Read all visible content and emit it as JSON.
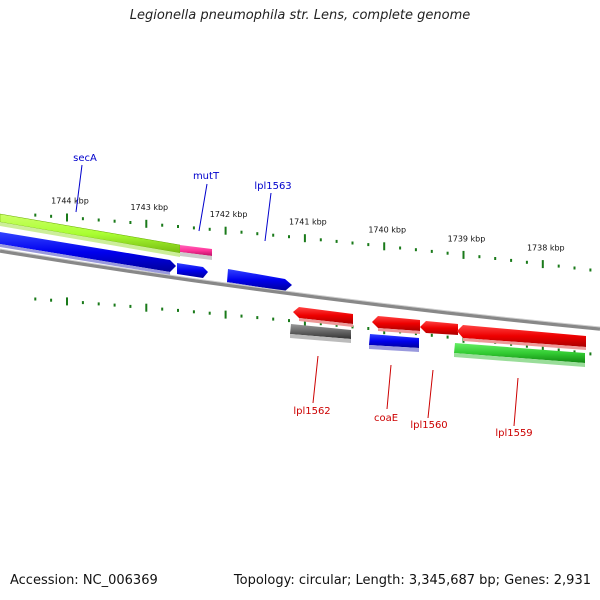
{
  "title": "Legionella pneumophila str. Lens, complete genome",
  "accession": "Accession: NC_006369",
  "topology": "Topology: circular; Length: 3,345,687 bp; Genes: 2,931",
  "kbp_labels": [
    {
      "text": "1744 kbp",
      "kbp": 1744
    },
    {
      "text": "1743 kbp",
      "kbp": 1743
    },
    {
      "text": "1742 kbp",
      "kbp": 1742
    },
    {
      "text": "1741 kbp",
      "kbp": 1741
    },
    {
      "text": "1740 kbp",
      "kbp": 1740
    },
    {
      "text": "1739 kbp",
      "kbp": 1739
    },
    {
      "text": "1738 kbp",
      "kbp": 1738
    }
  ],
  "genes_forward": [
    {
      "name": "secA",
      "color": "#0000cc"
    },
    {
      "name": "mutT",
      "color": "#0000cc"
    },
    {
      "name": "lpl1563",
      "color": "#0000cc"
    }
  ],
  "genes_reverse": [
    {
      "name": "lpl1562",
      "color": "#cc0000"
    },
    {
      "name": "coaE",
      "color": "#cc0000"
    },
    {
      "name": "lpl1560",
      "color": "#cc0000"
    },
    {
      "name": "lpl1559",
      "color": "#cc0000"
    }
  ],
  "colors": {
    "forward_cds": "#0000ee",
    "reverse_cds": "#ee0000",
    "cog_green_light": "#aaff33",
    "cog_green": "#33cc33",
    "cog_pink": "#ff3399",
    "cog_gray": "#666666",
    "tick": "#1a7a1a",
    "backbone": "#888888"
  }
}
